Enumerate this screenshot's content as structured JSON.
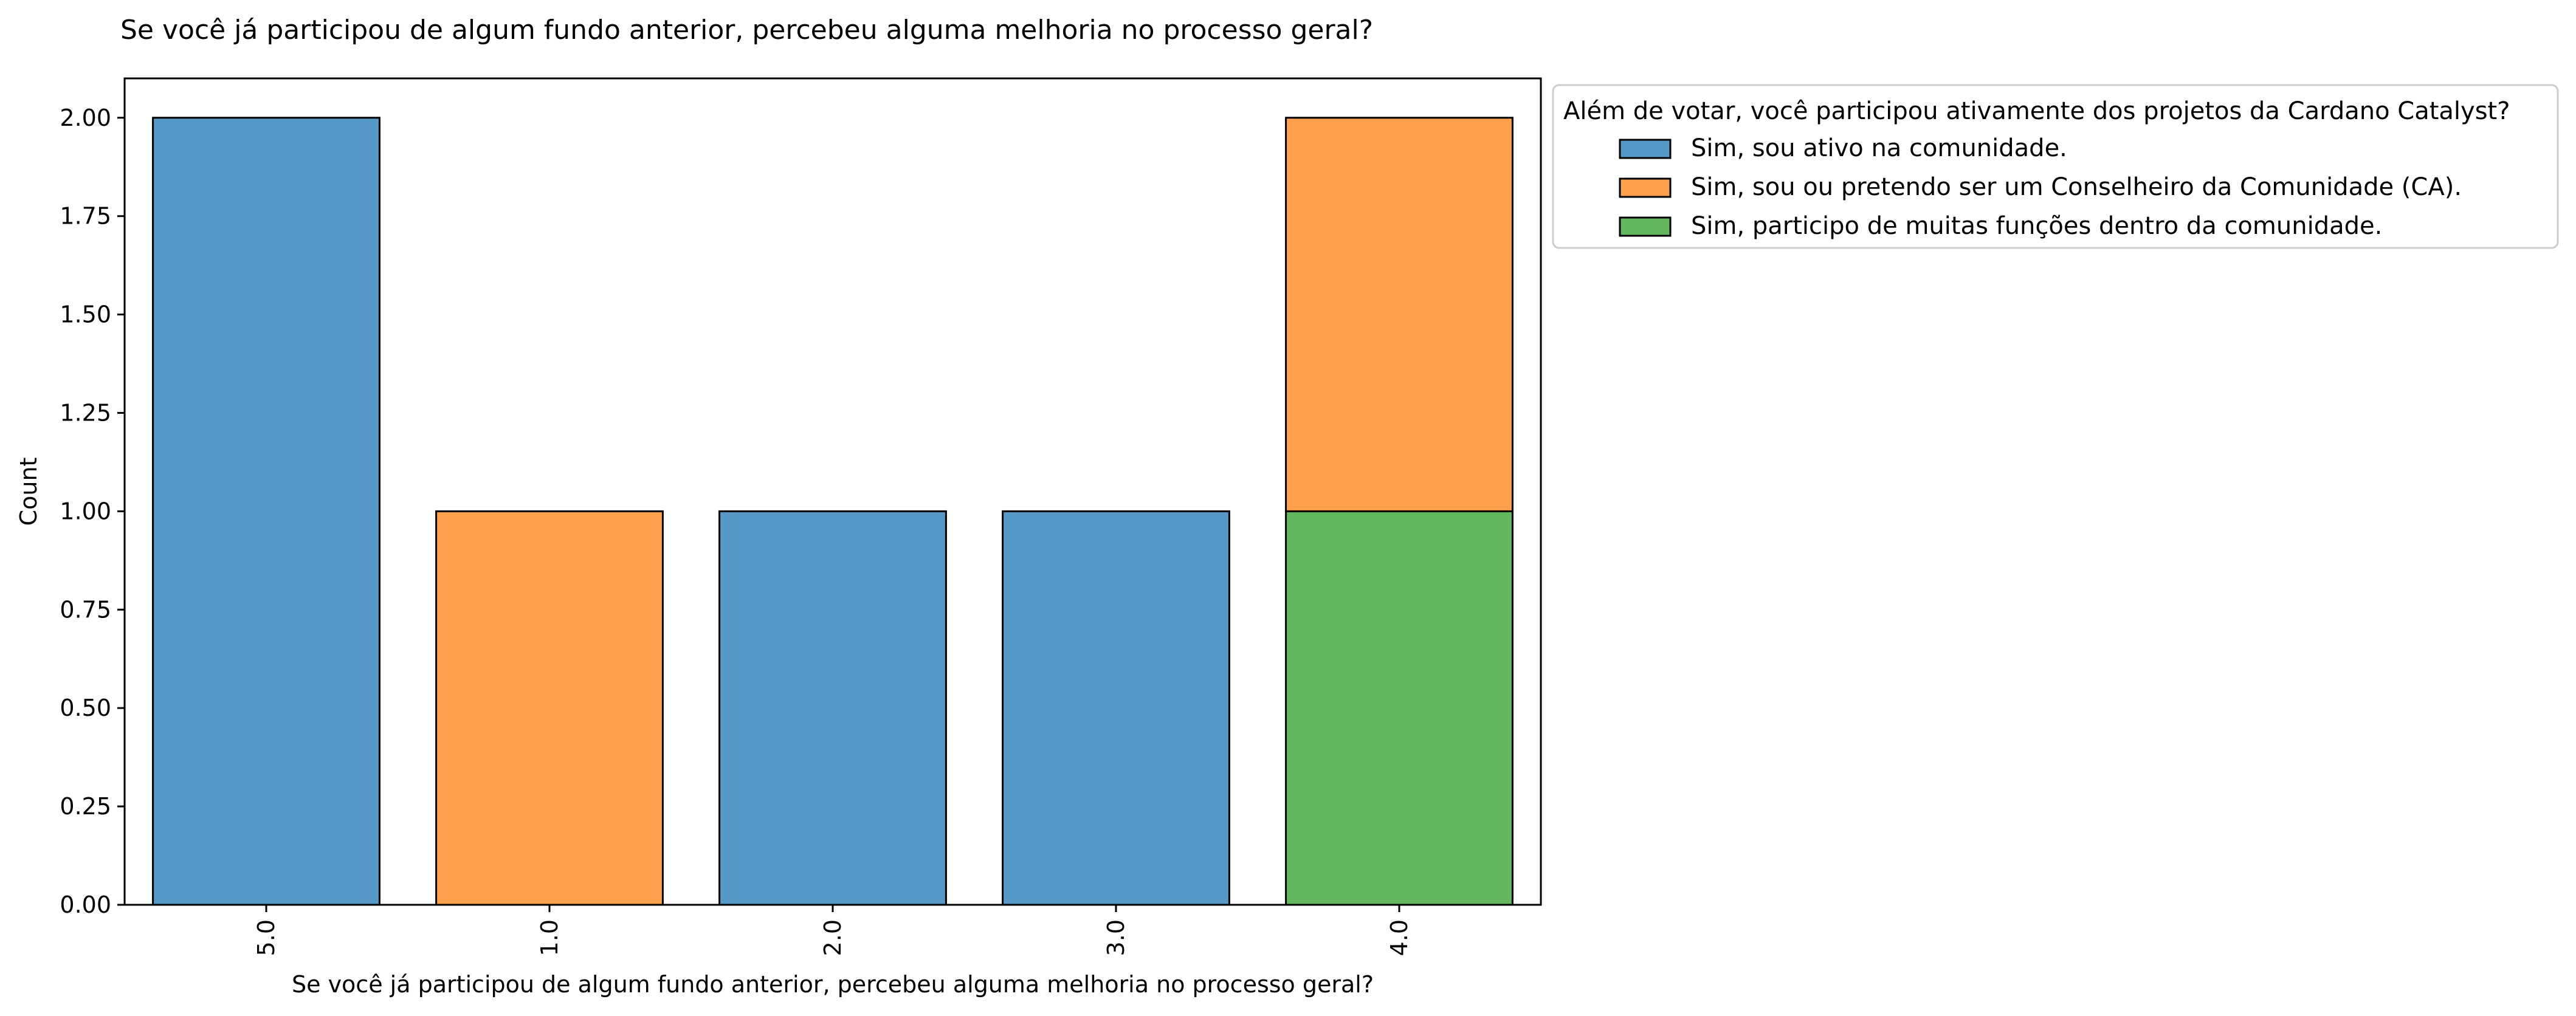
{
  "chart_data": {
    "type": "bar",
    "stacked": true,
    "title": "Se você já participou de algum fundo anterior, percebeu alguma melhoria no processo geral?",
    "xlabel": "Se você já participou de algum fundo anterior, percebeu alguma melhoria no processo geral?",
    "ylabel": "Count",
    "categories": [
      "5.0",
      "1.0",
      "2.0",
      "3.0",
      "4.0"
    ],
    "ylim": [
      0,
      2.1
    ],
    "yticks": [
      "0.00",
      "0.25",
      "0.50",
      "0.75",
      "1.00",
      "1.25",
      "1.50",
      "1.75",
      "2.00"
    ],
    "ytick_values": [
      0,
      0.25,
      0.5,
      0.75,
      1.0,
      1.25,
      1.5,
      1.75,
      2.0
    ],
    "grid": false,
    "legend": {
      "title": "Além de votar, você participou ativamente dos projetos da Cardano Catalyst?",
      "placement": "outside-top-right"
    },
    "series": [
      {
        "name": "Sim, sou ativo na comunidade.",
        "color": "#5799c6",
        "values": [
          2,
          0,
          1,
          1,
          0
        ]
      },
      {
        "name": "Sim, sou ou pretendo ser um Conselheiro da Comunidade (CA).",
        "color": "#ffa04c",
        "values": [
          0,
          1,
          0,
          0,
          1
        ]
      },
      {
        "name": "Sim, participo de muitas funções dentro da comunidade.",
        "color": "#62b75f",
        "values": [
          0,
          0,
          0,
          0,
          1
        ]
      }
    ],
    "stack_order": [
      2,
      1,
      0
    ]
  }
}
